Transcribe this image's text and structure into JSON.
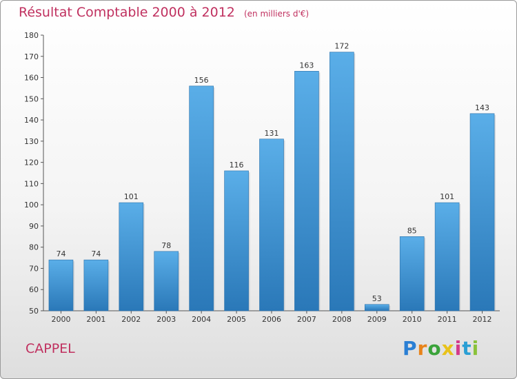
{
  "chart_data": {
    "type": "bar",
    "title": "Résultat Comptable 2000 à 2012",
    "subtitle": "(en milliers d'€)",
    "categories": [
      "2000",
      "2001",
      "2002",
      "2003",
      "2004",
      "2005",
      "2006",
      "2007",
      "2008",
      "2009",
      "2010",
      "2011",
      "2012"
    ],
    "values": [
      74,
      74,
      101,
      78,
      156,
      116,
      131,
      163,
      172,
      53,
      85,
      101,
      143
    ],
    "ylim": [
      50,
      180
    ],
    "yticks": [
      50,
      60,
      70,
      80,
      90,
      100,
      110,
      120,
      130,
      140,
      150,
      160,
      170,
      180
    ],
    "grid": false,
    "data_labels": true,
    "bar_color_top": "#5aaee8",
    "bar_color_bottom": "#2a78b8"
  },
  "place_name": "CAPPEL",
  "logo": {
    "letters": [
      "P",
      "r",
      "o",
      "x",
      "i",
      "t",
      "i"
    ],
    "colors": [
      "#2a7fd4",
      "#e8831a",
      "#3aa33a",
      "#e8c21a",
      "#d43a8a",
      "#2a9fd4",
      "#8ac23a"
    ]
  }
}
